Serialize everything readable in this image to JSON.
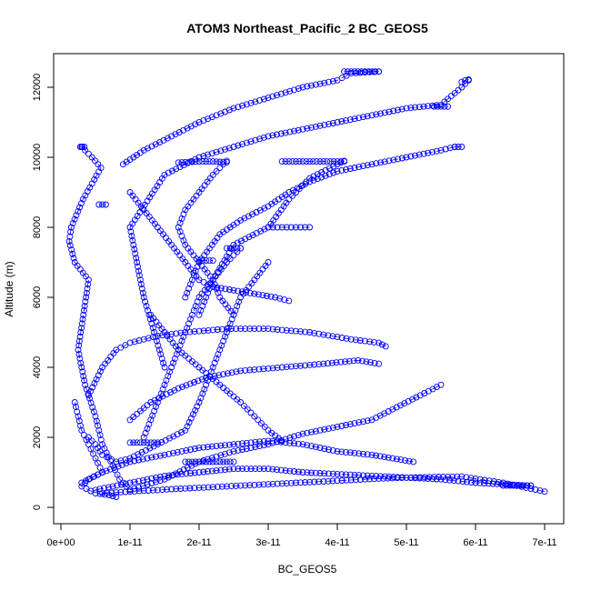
{
  "chart_data": {
    "type": "scatter",
    "title": "ATOM3 Northeast_Pacific_2 BC_GEOS5",
    "xlabel": "BC_GEOS5",
    "ylabel": "Altitude (m)",
    "xlim": [
      0,
      7e-11
    ],
    "ylim": [
      0,
      12500
    ],
    "x_ticks": [
      0,
      1e-11,
      2e-11,
      3e-11,
      4e-11,
      5e-11,
      6e-11,
      7e-11
    ],
    "x_tick_labels": [
      "0e+00",
      "1e-11",
      "2e-11",
      "3e-11",
      "4e-11",
      "5e-11",
      "6e-11",
      "7e-11"
    ],
    "y_ticks": [
      0,
      2000,
      4000,
      6000,
      8000,
      10000,
      12000
    ],
    "y_tick_labels": [
      "0",
      "2000",
      "4000",
      "6000",
      "8000",
      "10000",
      "12000"
    ],
    "marker": "open-circle",
    "color": "#0000ff",
    "series": [
      {
        "x": [
          3e-12,
          4.5e-12,
          5.8e-12,
          3.2e-12,
          1.5e-12,
          1.2e-12,
          2e-12,
          4e-12,
          2.5e-12,
          3.5e-12,
          5e-12,
          6e-12,
          7.5e-12,
          8.5e-12,
          1e-11
        ],
        "y": [
          10300,
          10000,
          9700,
          8800,
          8000,
          7600,
          7000,
          6500,
          4500,
          3500,
          2600,
          1800,
          1200,
          800,
          500
        ]
      },
      {
        "x": [
          1e-11,
          1.5e-11,
          2e-11,
          2.5e-11,
          3e-11,
          3.5e-11,
          4e-11,
          4.5e-11,
          4.8e-11,
          5.2e-11,
          5.5e-11
        ],
        "y": [
          500,
          800,
          1300,
          1600,
          1800,
          2100,
          2300,
          2500,
          2800,
          3200,
          3500
        ]
      },
      {
        "x": [
          1.5e-11,
          1.2e-11,
          1e-11,
          1.5e-11,
          2e-11,
          2.5e-11,
          3e-11,
          3.5e-11,
          4e-11,
          4.5e-11,
          5e-11,
          5.5e-11,
          5.8e-11,
          5.9e-11
        ],
        "y": [
          4000,
          6000,
          8000,
          9500,
          10000,
          10300,
          10600,
          10800,
          11000,
          11200,
          11400,
          11500,
          12000,
          12200
        ]
      },
      {
        "x": [
          9e-12,
          1.2e-11,
          1.6e-11,
          2e-11,
          2.5e-11,
          3e-11,
          3.5e-11,
          4e-11,
          4.2e-11,
          4.6e-11
        ],
        "y": [
          9800,
          10200,
          10600,
          11000,
          11400,
          11700,
          12000,
          12200,
          12400,
          12450
        ]
      },
      {
        "x": [
          1.8e-11,
          2e-11,
          2.3e-11,
          2.6e-11,
          3e-11,
          3.3e-11,
          3.6e-11,
          4e-11,
          4.5e-11,
          5e-11,
          5.5e-11,
          5.7e-11
        ],
        "y": [
          6000,
          7000,
          7800,
          8200,
          8600,
          9000,
          9300,
          9600,
          9800,
          10000,
          10200,
          10300
        ]
      },
      {
        "x": [
          2e-11,
          2.2e-11,
          2.5e-11,
          3e-11,
          3.3e-11,
          3.6e-11,
          4e-11,
          4.1e-11
        ],
        "y": [
          5500,
          6500,
          7500,
          8000,
          8800,
          9400,
          9800,
          9900
        ]
      },
      {
        "x": [
          4e-12,
          6e-12,
          8e-12,
          1e-11,
          1.4e-11,
          1.8e-11,
          2.4e-11,
          3e-11,
          3.6e-11,
          4.2e-11,
          4.6e-11,
          4.7e-11
        ],
        "y": [
          3200,
          4000,
          4500,
          4700,
          4900,
          5000,
          5100,
          5100,
          5000,
          4800,
          4700,
          4600
        ]
      },
      {
        "x": [
          1e-11,
          1.3e-11,
          1.7e-11,
          2.1e-11,
          2.6e-11,
          3.2e-11,
          3.8e-11,
          4.3e-11,
          4.6e-11
        ],
        "y": [
          2500,
          3000,
          3400,
          3700,
          3900,
          4000,
          4100,
          4200,
          4100
        ]
      },
      {
        "x": [
          3e-12,
          6e-12,
          1e-11,
          1.5e-11,
          2e-11,
          2.5e-11,
          3e-11,
          3.5e-11,
          4e-11,
          4.5e-11,
          4.8e-11,
          5.1e-11
        ],
        "y": [
          700,
          1000,
          1300,
          1500,
          1700,
          1800,
          1900,
          1800,
          1600,
          1500,
          1400,
          1300
        ]
      },
      {
        "x": [
          5e-12,
          1e-11,
          1.5e-11,
          2e-11,
          2.5e-11,
          3e-11,
          3.5e-11,
          4e-11,
          4.5e-11,
          5e-11,
          5.5e-11,
          6e-11,
          6.5e-11,
          6.8e-11
        ],
        "y": [
          500,
          700,
          900,
          1000,
          1100,
          1100,
          1000,
          950,
          900,
          850,
          800,
          700,
          650,
          620
        ]
      },
      {
        "x": [
          6e-12,
          1e-11,
          1.6e-11,
          2.2e-11,
          2.8e-11,
          3.4e-11,
          4e-11,
          4.6e-11,
          5.2e-11,
          5.8e-11,
          6.4e-11,
          7e-11
        ],
        "y": [
          400,
          450,
          520,
          580,
          640,
          700,
          760,
          820,
          860,
          880,
          700,
          450
        ]
      },
      {
        "x": [
          4e-12,
          5e-12,
          6e-12,
          8e-12,
          1e-11,
          1.4e-11,
          1.8e-11,
          2e-11,
          2.2e-11,
          2.4e-11,
          2.6e-11,
          3e-11
        ],
        "y": [
          2000,
          1800,
          1500,
          1300,
          1400,
          1800,
          2200,
          3000,
          4000,
          5000,
          6000,
          7000
        ]
      },
      {
        "x": [
          2.4e-11,
          2.2e-11,
          2e-11,
          1.8e-11,
          1.7e-11,
          1.8e-11,
          2e-11,
          2.2e-11,
          2.3e-11,
          2.5e-11
        ],
        "y": [
          9900,
          9500,
          9000,
          8500,
          8000,
          7500,
          7000,
          6500,
          6000,
          5500
        ]
      },
      {
        "x": [
          1e-11,
          1.2e-11,
          1.4e-11,
          1.6e-11,
          1.8e-11,
          2e-11,
          2.2e-11,
          2.5e-11,
          2.8e-11,
          3.1e-11,
          3.3e-11
        ],
        "y": [
          9000,
          8500,
          8000,
          7500,
          7000,
          6500,
          6300,
          6200,
          6100,
          6000,
          5900
        ]
      },
      {
        "x": [
          1.3e-11,
          1.5e-11,
          1.7e-11,
          2e-11,
          2.3e-11,
          2.6e-11,
          2.8e-11,
          3e-11,
          3.2e-11
        ],
        "y": [
          5500,
          5000,
          4500,
          4000,
          3500,
          3000,
          2600,
          2200,
          1900
        ]
      },
      {
        "x": [
          2.6e-11,
          2.4e-11,
          2.2e-11,
          2e-11,
          1.8e-11,
          1.6e-11,
          1.4e-11,
          1.2e-11
        ],
        "y": [
          7400,
          7000,
          6500,
          6000,
          5000,
          4000,
          3000,
          2000
        ]
      },
      {
        "x": [
          1.7e-11,
          1.8e-11,
          1.9e-11,
          2e-11,
          2.1e-11,
          2.2e-11,
          2.3e-11,
          2.4e-11
        ],
        "y": [
          9850,
          9860,
          9870,
          9880,
          9880,
          9880,
          9870,
          9860
        ]
      },
      {
        "x": [
          3.2e-11,
          3.3e-11,
          3.4e-11,
          3.5e-11,
          3.6e-11,
          3.7e-11,
          3.8e-11,
          3.9e-11,
          4e-11,
          4.1e-11
        ],
        "y": [
          9880,
          9880,
          9880,
          9880,
          9880,
          9880,
          9880,
          9880,
          9880,
          9880
        ]
      },
      {
        "x": [
          4.1e-11,
          4.2e-11,
          4.3e-11,
          4.4e-11,
          4.5e-11,
          4.6e-11
        ],
        "y": [
          12450,
          12450,
          12450,
          12450,
          12450,
          12450
        ]
      },
      {
        "x": [
          3e-11,
          3.2e-11,
          3.4e-11,
          3.6e-11
        ],
        "y": [
          8000,
          8000,
          8000,
          8000
        ]
      },
      {
        "x": [
          2e-11,
          2.1e-11,
          2.2e-11
        ],
        "y": [
          7050,
          7050,
          7050
        ]
      },
      {
        "x": [
          2.4e-11,
          2.5e-11,
          2.6e-11
        ],
        "y": [
          7400,
          7400,
          7400
        ]
      },
      {
        "x": [
          1e-11,
          1.1e-11,
          1.2e-11,
          1.3e-11,
          1.4e-11
        ],
        "y": [
          1850,
          1850,
          1850,
          1850,
          1850
        ]
      },
      {
        "x": [
          1.8e-11,
          1.9e-11,
          2e-11,
          2.1e-11,
          2.2e-11,
          2.3e-11,
          2.4e-11,
          2.5e-11
        ],
        "y": [
          1300,
          1300,
          1300,
          1300,
          1300,
          1300,
          1300,
          1300
        ]
      },
      {
        "x": [
          6.4e-11,
          6.5e-11,
          6.6e-11,
          6.7e-11,
          6.8e-11
        ],
        "y": [
          620,
          620,
          620,
          620,
          620
        ]
      },
      {
        "x": [
          5.4e-11,
          5.5e-11,
          5.6e-11
        ],
        "y": [
          11450,
          11450,
          11450
        ]
      },
      {
        "x": [
          5.7e-11,
          5.75e-11,
          5.8e-11
        ],
        "y": [
          10300,
          10300,
          10300
        ]
      },
      {
        "x": [
          5.8e-11,
          5.85e-11,
          5.9e-11
        ],
        "y": [
          12150,
          12200,
          12220
        ]
      },
      {
        "x": [
          5.5e-12,
          6e-12,
          6.5e-12
        ],
        "y": [
          8650,
          8650,
          8650
        ]
      },
      {
        "x": [
          2.8e-12,
          3.1e-12,
          3.4e-12
        ],
        "y": [
          10300,
          10300,
          10300
        ]
      },
      {
        "x": [
          2e-12,
          2.5e-12,
          3e-12,
          4e-12,
          5e-12,
          6e-12,
          4e-12,
          3e-12,
          5e-12,
          7e-12,
          8e-12
        ],
        "y": [
          3000,
          2600,
          2200,
          1800,
          1400,
          1000,
          800,
          600,
          400,
          350,
          300
        ]
      }
    ]
  }
}
